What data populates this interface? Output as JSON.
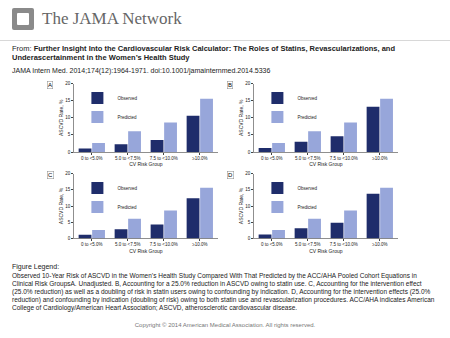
{
  "page": {
    "logo": "The JAMA Network",
    "from_label": "From:",
    "article_title": "Further Insight Into the Cardiovascular Risk Calculator:  The Roles of Statins, Revascularizations, and Underascertainment in the Women’s Health Study",
    "citation": "JAMA Intern Med. 2014;174(12):1964-1971. doi:10.1001/jamainternmed.2014.5336",
    "legend_heading": "Figure Legend:",
    "legend_text": "Observed 10-Year Risk of ASCVD in the Women’s Health Study Compared With That Predicted by the ACC/AHA Pooled Cohort Equations in Clinical Risk GroupsA. Unadjusted. B, Accounting for a 25.0% reduction in ASCVD owing to statin use. C, Accounting for the intervention effect (25.0% reduction) as well as a doubling of risk in statin users owing to confounding by indication. D, Accounting for the intervention effects (25.0% reduction) and confounding by indication (doubling of risk) owing to both statin use and revascularization procedures. ACC/AHA indicates American College of Cardiology/American Heart Association; ASCVD, atherosclerotic cardiovascular disease.",
    "copyright": "Copyright © 2014 American Medical Association. All rights reserved."
  },
  "chart_data": [
    {
      "type": "bar",
      "title": "A",
      "xlabel": "CV Risk Group",
      "ylabel": "ASCVD Rate, %",
      "categories": [
        "0 to <5.0%",
        "5.0 to <7.5%",
        "7.5 to <10.0%",
        "≥10.0%"
      ],
      "series": [
        {
          "name": "Observed",
          "color": "#1f2d6b",
          "values": [
            1.0,
            2.3,
            3.5,
            10.6
          ]
        },
        {
          "name": "Predicted",
          "color": "#97a6da",
          "values": [
            2.6,
            6.1,
            8.6,
            15.6
          ]
        }
      ],
      "ylim": [
        0,
        20
      ],
      "yticks": [
        0,
        5,
        10,
        15,
        20
      ],
      "grid": false,
      "legend": "upper left"
    },
    {
      "type": "bar",
      "title": "B",
      "xlabel": "CV Risk Group",
      "ylabel": "ASCVD Rate, %",
      "categories": [
        "0 to <5.0%",
        "5.0 to <7.5%",
        "7.5 to <10.0%",
        "≥10.0%"
      ],
      "series": [
        {
          "name": "Observed",
          "color": "#1f2d6b",
          "values": [
            1.2,
            3.0,
            4.6,
            13.2
          ]
        },
        {
          "name": "Predicted",
          "color": "#97a6da",
          "values": [
            2.6,
            6.1,
            8.6,
            15.6
          ]
        }
      ],
      "ylim": [
        0,
        20
      ],
      "yticks": [
        0,
        5,
        10,
        15,
        20
      ],
      "grid": false,
      "legend": "upper left"
    },
    {
      "type": "bar",
      "title": "C",
      "xlabel": "CV Risk Group",
      "ylabel": "ASCVD Rate, %",
      "categories": [
        "0 to <5.0%",
        "5.0 to <7.5%",
        "7.5 to <10.0%",
        "≥10.0%"
      ],
      "series": [
        {
          "name": "Observed",
          "color": "#1f2d6b",
          "values": [
            1.1,
            2.8,
            4.3,
            12.4
          ]
        },
        {
          "name": "Predicted",
          "color": "#97a6da",
          "values": [
            2.6,
            6.1,
            8.6,
            15.6
          ]
        }
      ],
      "ylim": [
        0,
        20
      ],
      "yticks": [
        0,
        5,
        10,
        15,
        20
      ],
      "grid": false,
      "legend": "upper left"
    },
    {
      "type": "bar",
      "title": "D",
      "xlabel": "CV Risk Group",
      "ylabel": "ASCVD Rate, %",
      "categories": [
        "0 to <5.0%",
        "5.0 to <7.5%",
        "7.5 to <10.0%",
        "≥10.0%"
      ],
      "series": [
        {
          "name": "Observed",
          "color": "#1f2d6b",
          "values": [
            1.2,
            3.1,
            4.8,
            13.8
          ]
        },
        {
          "name": "Predicted",
          "color": "#97a6da",
          "values": [
            2.6,
            6.1,
            8.6,
            15.6
          ]
        }
      ],
      "ylim": [
        0,
        20
      ],
      "yticks": [
        0,
        5,
        10,
        15,
        20
      ],
      "grid": false,
      "legend": "upper left"
    }
  ]
}
